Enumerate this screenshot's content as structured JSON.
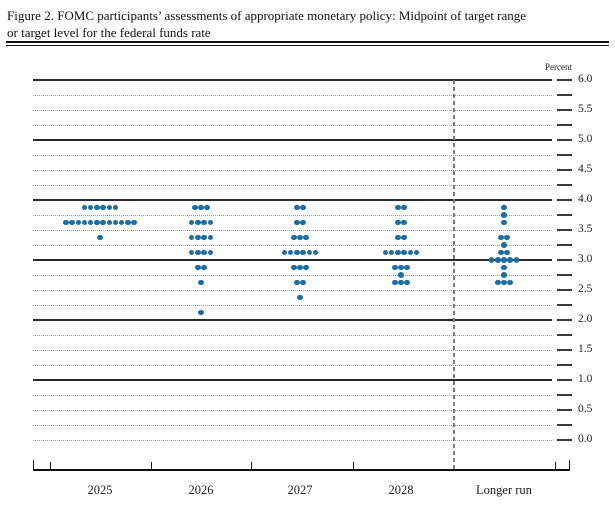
{
  "figure": {
    "title_line1": "Figure 2. FOMC participants’ assessments of appropriate monetary policy: Midpoint of target range",
    "title_line2": "or target level for the federal funds rate"
  },
  "chart_data": {
    "type": "scatter",
    "subtype": "fomc-dot-plot",
    "title": "FOMC participants’ assessments of appropriate monetary policy: Midpoint of target range or target level for the federal funds rate",
    "unit_label": "Percent",
    "ylim": [
      0.0,
      6.0
    ],
    "y_gridline_step": 0.25,
    "y_label_step": 0.5,
    "y_tick_labels": [
      "6.0",
      "5.5",
      "5.0",
      "4.5",
      "4.0",
      "3.5",
      "3.0",
      "2.5",
      "2.0",
      "1.5",
      "1.0",
      "0.5",
      "0.0"
    ],
    "solid_gridlines_at": [
      6,
      5,
      4,
      3,
      2,
      1
    ],
    "grid_on": true,
    "legend_position": "none",
    "dot_color": "#1e6ea6",
    "categories": [
      "2025",
      "2026",
      "2027",
      "2028",
      "Longer run"
    ],
    "separator_before_category": "Longer run",
    "dots": [
      {
        "category": "2025",
        "distribution": [
          {
            "rate": 3.875,
            "count": 6
          },
          {
            "rate": 3.625,
            "count": 12
          },
          {
            "rate": 3.375,
            "count": 1
          }
        ]
      },
      {
        "category": "2026",
        "distribution": [
          {
            "rate": 3.875,
            "count": 3
          },
          {
            "rate": 3.625,
            "count": 4
          },
          {
            "rate": 3.375,
            "count": 4
          },
          {
            "rate": 3.125,
            "count": 4
          },
          {
            "rate": 2.875,
            "count": 2
          },
          {
            "rate": 2.625,
            "count": 1
          },
          {
            "rate": 2.125,
            "count": 1
          }
        ]
      },
      {
        "category": "2027",
        "distribution": [
          {
            "rate": 3.875,
            "count": 2
          },
          {
            "rate": 3.625,
            "count": 2
          },
          {
            "rate": 3.375,
            "count": 3
          },
          {
            "rate": 3.125,
            "count": 6
          },
          {
            "rate": 2.875,
            "count": 3
          },
          {
            "rate": 2.625,
            "count": 2
          },
          {
            "rate": 2.375,
            "count": 1
          }
        ]
      },
      {
        "category": "2028",
        "distribution": [
          {
            "rate": 3.875,
            "count": 2
          },
          {
            "rate": 3.625,
            "count": 2
          },
          {
            "rate": 3.375,
            "count": 2
          },
          {
            "rate": 3.125,
            "count": 6
          },
          {
            "rate": 2.875,
            "count": 3
          },
          {
            "rate": 2.75,
            "count": 1
          },
          {
            "rate": 2.625,
            "count": 3
          }
        ]
      },
      {
        "category": "Longer run",
        "distribution": [
          {
            "rate": 3.875,
            "count": 1
          },
          {
            "rate": 3.75,
            "count": 1
          },
          {
            "rate": 3.625,
            "count": 1
          },
          {
            "rate": 3.375,
            "count": 2
          },
          {
            "rate": 3.25,
            "count": 1
          },
          {
            "rate": 3.125,
            "count": 2
          },
          {
            "rate": 3.0,
            "count": 5
          },
          {
            "rate": 2.875,
            "count": 1
          },
          {
            "rate": 2.75,
            "count": 1
          },
          {
            "rate": 2.625,
            "count": 3
          }
        ]
      }
    ]
  }
}
